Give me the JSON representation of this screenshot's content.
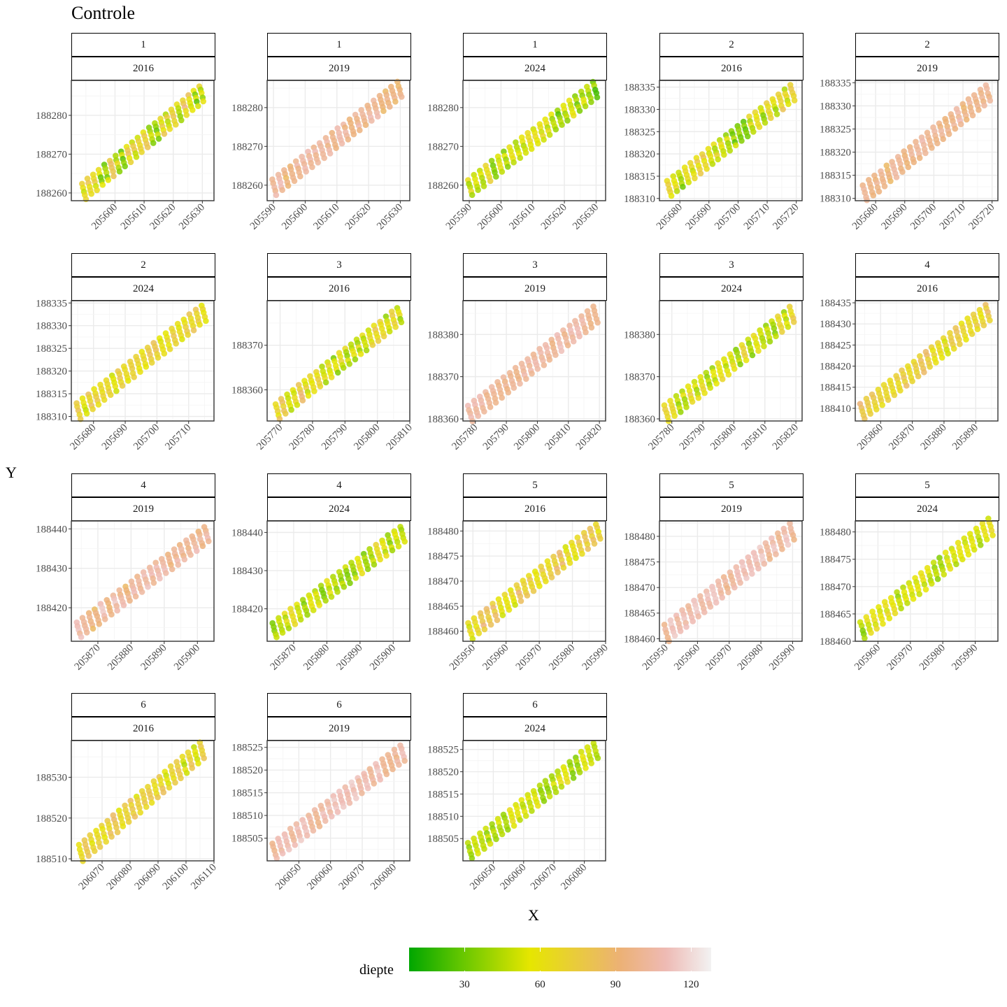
{
  "title": "Controle",
  "xlabel": "X",
  "ylabel": "Y",
  "legend": {
    "title": "diepte",
    "ticks": [
      30,
      60,
      90,
      120
    ],
    "range": [
      8,
      128
    ],
    "colors": [
      "#00a600",
      "#63c600",
      "#e6e600",
      "#ecb176",
      "#eebab4",
      "#f2f2f2"
    ]
  },
  "chart_data": {
    "type": "scatter",
    "facets": [
      {
        "strip1": "1",
        "strip2": "2016",
        "xlim": [
          205585,
          205634
        ],
        "ylim": [
          188258,
          188289
        ],
        "xticks": [
          205600,
          205610,
          205620,
          205630
        ],
        "yticks": [
          188260,
          188270,
          188280
        ],
        "x_range": [
          205588,
          205631
        ],
        "y_range": [
          188259,
          188287
        ],
        "depth_mean": 60,
        "depth_spread": 35
      },
      {
        "strip1": "1",
        "strip2": "2019",
        "xlim": [
          205588,
          205633
        ],
        "ylim": [
          188256,
          188287
        ],
        "xticks": [
          205590,
          205600,
          205610,
          205620,
          205630
        ],
        "yticks": [
          188260,
          188270,
          188280
        ],
        "x_range": [
          205589,
          205631
        ],
        "y_range": [
          188258,
          188286
        ],
        "depth_mean": 100,
        "depth_spread": 15
      },
      {
        "strip1": "1",
        "strip2": "2024",
        "xlim": [
          205588,
          205633
        ],
        "ylim": [
          188256,
          188287
        ],
        "xticks": [
          205590,
          205600,
          205610,
          205620,
          205630
        ],
        "yticks": [
          188260,
          188270,
          188280
        ],
        "x_range": [
          205589,
          205631
        ],
        "y_range": [
          188258,
          188286
        ],
        "depth_mean": 48,
        "depth_spread": 25
      },
      {
        "strip1": "2",
        "strip2": "2016",
        "xlim": [
          205673,
          205722
        ],
        "ylim": [
          188309.5,
          188336.5
        ],
        "xticks": [
          205680,
          205690,
          205700,
          205710,
          205720
        ],
        "yticks": [
          188310,
          188315,
          188320,
          188325,
          188330,
          188335
        ],
        "x_range": [
          205675,
          205720
        ],
        "y_range": [
          188311,
          188335
        ],
        "depth_mean": 55,
        "depth_spread": 30
      },
      {
        "strip1": "2",
        "strip2": "2019",
        "xlim": [
          205673,
          205722
        ],
        "ylim": [
          188309.5,
          188335.5
        ],
        "xticks": [
          205680,
          205690,
          205700,
          205710,
          205720
        ],
        "yticks": [
          188310,
          188315,
          188320,
          188325,
          188330,
          188335
        ],
        "x_range": [
          205675,
          205720
        ],
        "y_range": [
          188310,
          188334
        ],
        "depth_mean": 98,
        "depth_spread": 12
      },
      {
        "strip1": "2",
        "strip2": "2024",
        "xlim": [
          205673,
          205718
        ],
        "ylim": [
          188309,
          188335.5
        ],
        "xticks": [
          205680,
          205690,
          205700,
          205710
        ],
        "yticks": [
          188310,
          188315,
          188320,
          188325,
          188330,
          188335
        ],
        "x_range": [
          205674,
          205716
        ],
        "y_range": [
          188310,
          188334
        ],
        "depth_mean": 65,
        "depth_spread": 20
      },
      {
        "strip1": "3",
        "strip2": "2016",
        "xlim": [
          205766,
          205810
        ],
        "ylim": [
          188353,
          188380
        ],
        "xticks": [
          205770,
          205780,
          205790,
          205800,
          205810
        ],
        "yticks": [
          188360,
          188370
        ],
        "x_range": [
          205768,
          205808
        ],
        "y_range": [
          188354,
          188378
        ],
        "depth_mean": 60,
        "depth_spread": 30
      },
      {
        "strip1": "3",
        "strip2": "2019",
        "xlim": [
          205776,
          205822
        ],
        "ylim": [
          188359.5,
          188388
        ],
        "xticks": [
          205780,
          205790,
          205800,
          205810,
          205820
        ],
        "yticks": [
          188360,
          188370,
          188380
        ],
        "x_range": [
          205777,
          205820
        ],
        "y_range": [
          188360,
          188386
        ],
        "depth_mean": 102,
        "depth_spread": 10
      },
      {
        "strip1": "3",
        "strip2": "2024",
        "xlim": [
          205776,
          205822
        ],
        "ylim": [
          188359.5,
          188388
        ],
        "xticks": [
          205780,
          205790,
          205800,
          205810,
          205820
        ],
        "yticks": [
          188360,
          188370,
          188380
        ],
        "x_range": [
          205777,
          205820
        ],
        "y_range": [
          188360,
          188386
        ],
        "depth_mean": 55,
        "depth_spread": 22
      },
      {
        "strip1": "4",
        "strip2": "2016",
        "xlim": [
          205852,
          205897
        ],
        "ylim": [
          188407,
          188435.5
        ],
        "xticks": [
          205860,
          205870,
          205880,
          205890
        ],
        "yticks": [
          188410,
          188415,
          188420,
          188425,
          188430,
          188435
        ],
        "x_range": [
          205853,
          205895
        ],
        "y_range": [
          188408,
          188434
        ],
        "depth_mean": 70,
        "depth_spread": 20
      },
      {
        "strip1": "4",
        "strip2": "2019",
        "xlim": [
          205862,
          205905
        ],
        "ylim": [
          188411.5,
          188442
        ],
        "xticks": [
          205870,
          205880,
          205890,
          205900
        ],
        "yticks": [
          188420,
          188430,
          188440
        ],
        "x_range": [
          205863,
          205904
        ],
        "y_range": [
          188413,
          188440
        ],
        "depth_mean": 100,
        "depth_spread": 15
      },
      {
        "strip1": "4",
        "strip2": "2024",
        "xlim": [
          205862,
          205905
        ],
        "ylim": [
          188411.5,
          188443
        ],
        "xticks": [
          205870,
          205880,
          205890,
          205900
        ],
        "yticks": [
          188420,
          188430,
          188440
        ],
        "x_range": [
          205863,
          205904
        ],
        "y_range": [
          188413,
          188441
        ],
        "depth_mean": 52,
        "depth_spread": 22
      },
      {
        "strip1": "5",
        "strip2": "2016",
        "xlim": [
          205947,
          205990
        ],
        "ylim": [
          188458,
          188482
        ],
        "xticks": [
          205950,
          205960,
          205970,
          205980,
          205990
        ],
        "yticks": [
          188460,
          188465,
          188470,
          188475,
          188480
        ],
        "x_range": [
          205948,
          205989
        ],
        "y_range": [
          188459,
          188481
        ],
        "depth_mean": 70,
        "depth_spread": 22
      },
      {
        "strip1": "5",
        "strip2": "2019",
        "xlim": [
          205948,
          205993
        ],
        "ylim": [
          188459.5,
          188483
        ],
        "xticks": [
          205950,
          205960,
          205970,
          205980,
          205990
        ],
        "yticks": [
          188460,
          188465,
          188470,
          188475,
          188480
        ],
        "x_range": [
          205949,
          205991
        ],
        "y_range": [
          188460,
          188482
        ],
        "depth_mean": 105,
        "depth_spread": 12
      },
      {
        "strip1": "5",
        "strip2": "2024",
        "xlim": [
          205953,
          205997
        ],
        "ylim": [
          188460,
          188482
        ],
        "xticks": [
          205960,
          205970,
          205980,
          205990
        ],
        "yticks": [
          188460,
          188465,
          188470,
          188475,
          188480
        ],
        "x_range": [
          205954,
          205996
        ],
        "y_range": [
          188461,
          188482
        ],
        "depth_mean": 50,
        "depth_spread": 18
      },
      {
        "strip1": "6",
        "strip2": "2016",
        "xlim": [
          206059,
          206110
        ],
        "ylim": [
          188509.5,
          188539
        ],
        "xticks": [
          206070,
          206080,
          206090,
          206100,
          206110
        ],
        "yticks": [
          188510,
          188520,
          188530
        ],
        "x_range": [
          206061,
          206107
        ],
        "y_range": [
          188510,
          188538
        ],
        "depth_mean": 68,
        "depth_spread": 22
      },
      {
        "strip1": "6",
        "strip2": "2019",
        "xlim": [
          206040,
          206085
        ],
        "ylim": [
          188500,
          188526.5
        ],
        "xticks": [
          206050,
          206060,
          206070,
          206080
        ],
        "yticks": [
          188505,
          188510,
          188515,
          188520,
          188525
        ],
        "x_range": [
          206041,
          206084
        ],
        "y_range": [
          188501,
          188525
        ],
        "depth_mean": 105,
        "depth_spread": 12
      },
      {
        "strip1": "6",
        "strip2": "2024",
        "xlim": [
          206040,
          206087
        ],
        "ylim": [
          188500,
          188527
        ],
        "xticks": [
          206050,
          206060,
          206070,
          206080
        ],
        "yticks": [
          188505,
          188510,
          188515,
          188520,
          188525
        ],
        "x_range": [
          206041,
          206085
        ],
        "y_range": [
          188501,
          188526
        ],
        "depth_mean": 48,
        "depth_spread": 18
      }
    ]
  }
}
